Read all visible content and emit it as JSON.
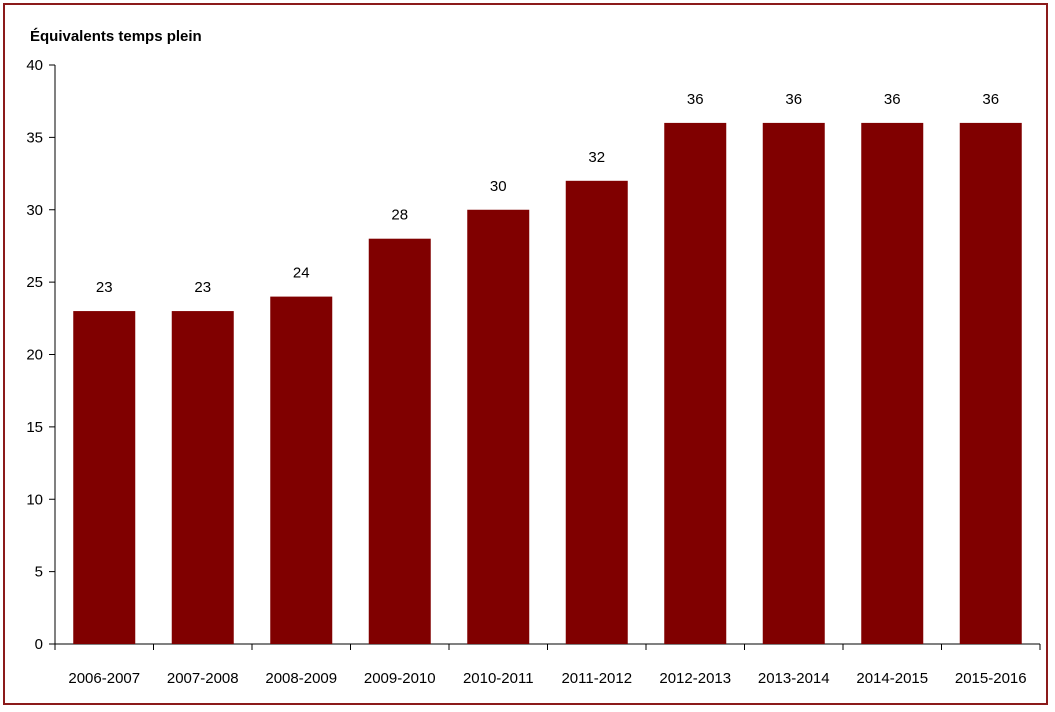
{
  "chart_data": {
    "type": "bar",
    "ylabel": "Équivalents temps plein",
    "categories": [
      "2006-2007",
      "2007-2008",
      "2008-2009",
      "2009-2010",
      "2010-2011",
      "2011-2012",
      "2012-2013",
      "2013-2014",
      "2014-2015",
      "2015-2016"
    ],
    "values": [
      23,
      23,
      24,
      28,
      30,
      32,
      36,
      36,
      36,
      36
    ],
    "data_labels": [
      "23",
      "23",
      "24",
      "28",
      "30",
      "32",
      "36",
      "36",
      "36",
      "36"
    ],
    "yticks": [
      "0",
      "5",
      "10",
      "15",
      "20",
      "25",
      "30",
      "35",
      "40"
    ],
    "ylim": [
      0,
      40
    ],
    "grid": false,
    "bar_color": "#800000",
    "frame_color": "#8b1a1a"
  }
}
